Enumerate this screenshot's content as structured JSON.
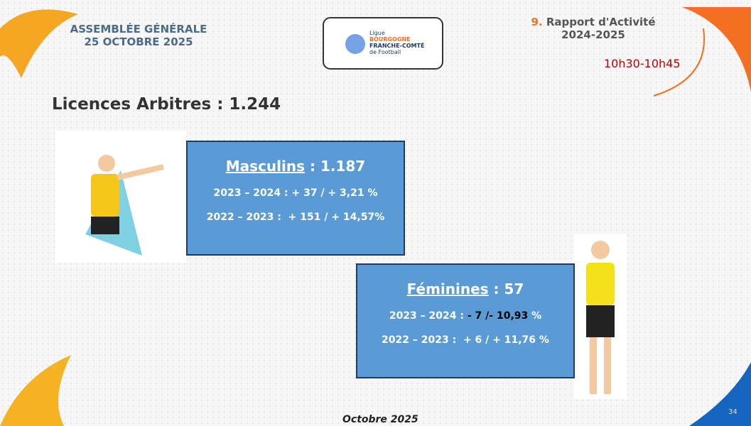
{
  "header": {
    "assembly_line1": "ASSEMBLÉE GÉNÉRALE",
    "assembly_line2": "25 OCTOBRE 2025",
    "logo": {
      "line1": "Ligue",
      "line2": "BOURGOGNE",
      "line3": "FRANCHE-COMTÉ",
      "line4": "de Football"
    },
    "section_number": "9.",
    "section_title": "Rapport d'Activité",
    "section_years": "2024-2025",
    "time": "10h30-10h45"
  },
  "title": "Licences Arbitres : 1.244",
  "masculins": {
    "label": "Masculins",
    "value": ": 1.187",
    "line1": "2023 – 2024 : + 37 / + 3,21 %",
    "line2": "2022 – 2023 :  + 151 / + 14,57%"
  },
  "feminines": {
    "label": "Féminines",
    "value": ": 57",
    "line1_prefix": "2023 – 2024 : ",
    "line1_highlight": "- 7 /- 10,93",
    "line1_suffix": " %",
    "line2": "2022 – 2023 :  + 6 / + 11,76 %"
  },
  "footer": {
    "date": "Octobre 2025",
    "page": "34"
  }
}
